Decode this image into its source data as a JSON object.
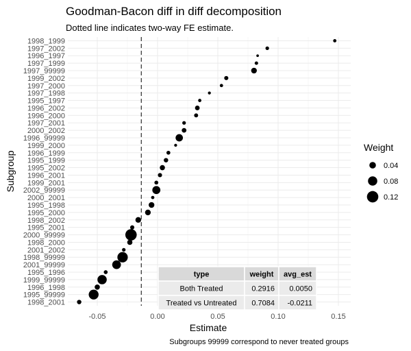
{
  "chart_data": {
    "type": "scatter",
    "title": "Goodman-Bacon diff in diff decomposition",
    "subtitle": "Dotted line indicates two-way FE estimate.",
    "xlabel": "Estimate",
    "ylabel": "Subgroup",
    "caption": "Subgroups 99999 correspond to never treated groups",
    "xlim": [
      -0.08,
      0.16
    ],
    "xticks": [
      -0.05,
      0.0,
      0.05,
      0.1,
      0.15
    ],
    "xtick_labels": [
      "-0.05",
      "0.00",
      "0.05",
      "0.10",
      "0.15"
    ],
    "vline": -0.0135,
    "grid": true,
    "legend": {
      "title": "Weight",
      "placement": "right",
      "values": [
        0.04,
        0.08,
        0.12
      ],
      "labels": [
        "0.04",
        "0.08",
        "0.12"
      ]
    },
    "points": [
      {
        "subgroup": "1998_1999",
        "estimate": 0.147,
        "weight": 0.01
      },
      {
        "subgroup": "1997_2002",
        "estimate": 0.091,
        "weight": 0.012
      },
      {
        "subgroup": "1996_1997",
        "estimate": 0.083,
        "weight": 0.006
      },
      {
        "subgroup": "1997_1999",
        "estimate": 0.082,
        "weight": 0.011
      },
      {
        "subgroup": "1997_99999",
        "estimate": 0.08,
        "weight": 0.03
      },
      {
        "subgroup": "1999_2002",
        "estimate": 0.057,
        "weight": 0.016
      },
      {
        "subgroup": "1997_2000",
        "estimate": 0.053,
        "weight": 0.01
      },
      {
        "subgroup": "1997_1998",
        "estimate": 0.043,
        "weight": 0.008
      },
      {
        "subgroup": "1995_1997",
        "estimate": 0.035,
        "weight": 0.01
      },
      {
        "subgroup": "1996_2002",
        "estimate": 0.033,
        "weight": 0.02
      },
      {
        "subgroup": "1996_2000",
        "estimate": 0.032,
        "weight": 0.015
      },
      {
        "subgroup": "1997_2001",
        "estimate": 0.022,
        "weight": 0.012
      },
      {
        "subgroup": "2000_2002",
        "estimate": 0.022,
        "weight": 0.02
      },
      {
        "subgroup": "1996_99999",
        "estimate": 0.018,
        "weight": 0.05
      },
      {
        "subgroup": "1999_2000",
        "estimate": 0.015,
        "weight": 0.008
      },
      {
        "subgroup": "1996_1999",
        "estimate": 0.009,
        "weight": 0.014
      },
      {
        "subgroup": "1995_1999",
        "estimate": 0.007,
        "weight": 0.018
      },
      {
        "subgroup": "1995_2002",
        "estimate": 0.004,
        "weight": 0.025
      },
      {
        "subgroup": "1996_2001",
        "estimate": 0.002,
        "weight": 0.016
      },
      {
        "subgroup": "1999_2001",
        "estimate": -0.001,
        "weight": 0.014
      },
      {
        "subgroup": "2002_99999",
        "estimate": -0.001,
        "weight": 0.06
      },
      {
        "subgroup": "2000_2001",
        "estimate": -0.004,
        "weight": 0.01
      },
      {
        "subgroup": "1995_1998",
        "estimate": -0.005,
        "weight": 0.03
      },
      {
        "subgroup": "1995_2000",
        "estimate": -0.008,
        "weight": 0.03
      },
      {
        "subgroup": "1998_2002",
        "estimate": -0.016,
        "weight": 0.03
      },
      {
        "subgroup": "1995_2001",
        "estimate": -0.021,
        "weight": 0.016
      },
      {
        "subgroup": "2000_99999",
        "estimate": -0.022,
        "weight": 0.12
      },
      {
        "subgroup": "1998_2000",
        "estimate": -0.023,
        "weight": 0.025
      },
      {
        "subgroup": "2001_2002",
        "estimate": -0.028,
        "weight": 0.012
      },
      {
        "subgroup": "1998_99999",
        "estimate": -0.029,
        "weight": 0.1
      },
      {
        "subgroup": "2001_99999",
        "estimate": -0.034,
        "weight": 0.07
      },
      {
        "subgroup": "1995_1996",
        "estimate": -0.043,
        "weight": 0.014
      },
      {
        "subgroup": "1999_99999",
        "estimate": -0.046,
        "weight": 0.08
      },
      {
        "subgroup": "1996_1998",
        "estimate": -0.05,
        "weight": 0.025
      },
      {
        "subgroup": "1995_99999",
        "estimate": -0.053,
        "weight": 0.09
      },
      {
        "subgroup": "1998_2001",
        "estimate": -0.065,
        "weight": 0.018
      }
    ],
    "table": {
      "columns": [
        "type",
        "weight",
        "avg_est"
      ],
      "rows": [
        [
          "Both Treated",
          "0.2916",
          "0.0050"
        ],
        [
          "Treated vs Untreated",
          "0.7084",
          "-0.0211"
        ]
      ]
    }
  }
}
